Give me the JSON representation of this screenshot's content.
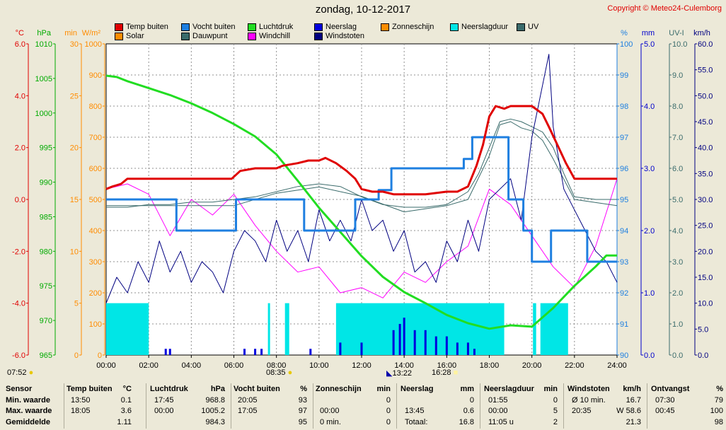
{
  "title": "zondag, 10-12-2017",
  "copyright": "Copyright © Meteo24-Culemborg",
  "legend": [
    {
      "label": "Temp buiten",
      "color": "#e00000"
    },
    {
      "label": "Vocht buiten",
      "color": "#1e7fe0"
    },
    {
      "label": "Luchtdruk",
      "color": "#22dd22"
    },
    {
      "label": "Neerslag",
      "color": "#0000dd"
    },
    {
      "label": "Zonneschijn",
      "color": "#ff8c00"
    },
    {
      "label": "Neerslagduur",
      "color": "#00e6e6"
    },
    {
      "label": "UV",
      "color": "#3a6b6b"
    },
    {
      "label": "Solar",
      "color": "#ff8c00"
    },
    {
      "label": "Dauwpunt",
      "color": "#3a6b6b"
    },
    {
      "label": "Windchill",
      "color": "#ff00ff"
    },
    {
      "label": "Windstoten",
      "color": "#000080"
    }
  ],
  "axes": {
    "temp": {
      "unit": "°C",
      "ticks": [
        "6.0",
        "4.0",
        "2.0",
        "0.0",
        "-2.0",
        "-4.0",
        "-6.0"
      ],
      "color": "#e00000"
    },
    "press": {
      "unit": "hPa",
      "ticks": [
        "1010",
        "1005",
        "1000",
        "995",
        "990",
        "985",
        "980",
        "975",
        "970",
        "965"
      ],
      "color": "#00aa00"
    },
    "min": {
      "unit": "min",
      "ticks": [
        "30",
        "25",
        "20",
        "15",
        "10",
        "5",
        "0"
      ],
      "color": "#ff8c00"
    },
    "solar": {
      "unit": "W/m²",
      "ticks": [
        "1000",
        "900",
        "800",
        "700",
        "600",
        "500",
        "400",
        "300",
        "200",
        "100",
        "0"
      ],
      "color": "#ff8c00"
    },
    "hum": {
      "unit": "%",
      "ticks": [
        "100",
        "99",
        "98",
        "97",
        "96",
        "95",
        "94",
        "93",
        "92",
        "91",
        "90"
      ],
      "color": "#1e7fe0"
    },
    "rain": {
      "unit": "mm",
      "ticks": [
        "5.0",
        "4.0",
        "3.0",
        "2.0",
        "1.0",
        "0.0"
      ],
      "color": "#0000cc"
    },
    "uv": {
      "unit": "UV-I",
      "ticks": [
        "10.0",
        "9.0",
        "8.0",
        "7.0",
        "6.0",
        "5.0",
        "4.0",
        "3.0",
        "2.0",
        "1.0",
        "0.0"
      ],
      "color": "#3a6b6b"
    },
    "wind": {
      "unit": "km/h",
      "ticks": [
        "60.0",
        "55.0",
        "50.0",
        "45.0",
        "40.0",
        "35.0",
        "30.0",
        "25.0",
        "20.0",
        "15.0",
        "10.0",
        "5.0",
        "0.0"
      ],
      "color": "#000080"
    },
    "time": {
      "ticks": [
        "00:00",
        "02:00",
        "04:00",
        "06:00",
        "08:00",
        "10:00",
        "12:00",
        "14:00",
        "16:00",
        "18:00",
        "20:00",
        "22:00",
        "24:00"
      ]
    }
  },
  "sun_events": {
    "sunrise": "08:35",
    "sunset": "16:28",
    "moon_left": "07:52",
    "moon_mid": "13:22"
  },
  "chart_data": {
    "type": "line",
    "x_unit": "hours",
    "xlim": [
      0,
      24
    ],
    "series": [
      {
        "name": "Temp buiten",
        "unit": "°C",
        "color": "#e00000",
        "x": [
          0,
          0.3,
          0.7,
          1,
          2,
          3,
          4,
          5,
          5.9,
          6.3,
          7,
          8,
          8.3,
          9,
          9.5,
          10,
          10.3,
          10.8,
          11.3,
          11.7,
          12,
          12.5,
          13,
          13.5,
          14,
          15,
          16,
          16.5,
          17,
          17.4,
          17.7,
          18,
          18.3,
          18.7,
          19,
          19.5,
          20,
          20.5,
          20.8,
          21.2,
          21.6,
          22,
          23,
          24
        ],
        "y": [
          0.4,
          0.5,
          0.6,
          0.8,
          0.8,
          0.8,
          0.8,
          0.8,
          0.8,
          1.1,
          1.2,
          1.2,
          1.3,
          1.4,
          1.5,
          1.5,
          1.6,
          1.4,
          1.1,
          0.8,
          0.4,
          0.3,
          0.3,
          0.2,
          0.2,
          0.2,
          0.3,
          0.3,
          0.5,
          1.3,
          2.1,
          3.2,
          3.6,
          3.5,
          3.6,
          3.6,
          3.6,
          3.3,
          2.8,
          2.1,
          1.4,
          0.8,
          0.8,
          0.8
        ]
      },
      {
        "name": "Dauwpunt",
        "unit": "°C",
        "color": "#3a6b6b",
        "x": [
          0,
          1,
          2,
          3,
          4,
          5,
          6,
          7,
          8,
          9,
          10,
          11,
          12,
          13,
          14,
          15,
          16,
          17,
          17.5,
          18,
          18.5,
          19,
          19.5,
          20,
          20.5,
          21,
          21.5,
          22,
          23,
          24
        ],
        "y": [
          -0.3,
          -0.3,
          -0.2,
          -0.2,
          -0.1,
          -0.1,
          0,
          0.1,
          0.3,
          0.5,
          0.6,
          0.5,
          0.1,
          -0.2,
          -0.3,
          -0.3,
          -0.2,
          0.3,
          1.0,
          2.0,
          3.0,
          3.1,
          3.0,
          2.8,
          2.6,
          2.0,
          1.0,
          0.1,
          0,
          0
        ]
      },
      {
        "name": "UV",
        "unit": "UV-I",
        "color": "#3a6b6b",
        "x": [
          0,
          6,
          8,
          10,
          12,
          14,
          16,
          17,
          18,
          18.5,
          19,
          19.5,
          20,
          20.5,
          21,
          22,
          24
        ],
        "y": [
          4.8,
          4.8,
          5.2,
          5.4,
          5.1,
          4.6,
          4.8,
          5.0,
          6.4,
          7.4,
          7.5,
          7.3,
          7.2,
          6.9,
          6.3,
          5.0,
          4.8
        ]
      },
      {
        "name": "Luchtdruk",
        "unit": "hPa",
        "color": "#22dd22",
        "x": [
          0,
          0.5,
          1,
          2,
          3,
          4,
          5,
          6,
          7,
          8,
          9,
          10,
          11,
          12,
          13,
          14,
          15,
          16,
          17,
          18,
          19,
          20,
          21,
          22,
          23,
          23.5,
          24
        ],
        "y": [
          1005.4,
          1005.2,
          1004.6,
          1003.6,
          1002.6,
          1001.4,
          1000,
          998.4,
          996.6,
          994,
          990.2,
          986.3,
          982.8,
          979.3,
          976.3,
          974.1,
          972.5,
          970.8,
          969.6,
          968.8,
          969.3,
          969.1,
          971.8,
          975,
          977.8,
          979.4,
          979.4
        ]
      },
      {
        "name": "Vocht buiten",
        "unit": "%",
        "color": "#1e7fe0",
        "x": [
          0,
          3.3,
          3.3,
          6.1,
          6.1,
          9.3,
          9.3,
          11.7,
          11.7,
          12.8,
          12.8,
          13.4,
          13.4,
          16.8,
          16.8,
          17.2,
          17.2,
          18.9,
          18.9,
          19.6,
          19.6,
          20.0,
          20.0,
          20.9,
          20.9,
          22.6,
          22.6,
          23.5,
          23.5,
          24
        ],
        "y": [
          95,
          95,
          94,
          94,
          95,
          95,
          94,
          94,
          95,
          95,
          95.3,
          95.3,
          96,
          96,
          96.3,
          96.3,
          97,
          97,
          95,
          95,
          94,
          94,
          93,
          93,
          94,
          94,
          93,
          93,
          93,
          93
        ]
      },
      {
        "name": "Windstoten",
        "unit": "km/h",
        "color": "#000080",
        "x": [
          0,
          0.5,
          1,
          1.5,
          2,
          2.5,
          3,
          3.5,
          4,
          4.5,
          5,
          5.5,
          6,
          6.5,
          7,
          7.5,
          8,
          8.5,
          9,
          9.5,
          10,
          10.5,
          11,
          11.5,
          12,
          12.5,
          13,
          13.5,
          14,
          14.5,
          15,
          15.5,
          16,
          16.5,
          17,
          17.5,
          18,
          18.5,
          19,
          19.5,
          20,
          20.5,
          20.8,
          21,
          21.5,
          22,
          22.5,
          23,
          23.5,
          24
        ],
        "y": [
          10,
          15,
          12,
          18,
          14,
          22,
          16,
          20,
          14,
          18,
          16,
          12,
          20,
          24,
          22,
          18,
          26,
          20,
          24,
          18,
          28,
          22,
          26,
          22,
          30,
          24,
          26,
          20,
          24,
          16,
          18,
          14,
          22,
          18,
          26,
          20,
          30,
          32,
          34,
          26,
          42,
          52,
          58,
          44,
          32,
          28,
          24,
          20,
          18,
          14
        ]
      },
      {
        "name": "Windchill",
        "unit": "°C",
        "color": "#ff00ff",
        "x": [
          0,
          1,
          2,
          3,
          4,
          5,
          6,
          7,
          8,
          9,
          10,
          11,
          12,
          13,
          14,
          15,
          16,
          17,
          18,
          19,
          20,
          21,
          22,
          23,
          24
        ],
        "y": [
          0.4,
          0.6,
          0.2,
          -1.4,
          0,
          -0.6,
          0.2,
          -1.0,
          -2.0,
          -2.8,
          -2.6,
          -3.6,
          -3.4,
          -3.8,
          -2.8,
          -3.2,
          -2.4,
          -1.8,
          0.4,
          -0.2,
          -1.4,
          -2.6,
          -3.4,
          -1.8,
          0.8
        ]
      },
      {
        "name": "Neerslagduur",
        "unit": "min",
        "color": "#00e6e6",
        "bars": [
          [
            0,
            2,
            5
          ],
          [
            7.6,
            7.7,
            5
          ],
          [
            8.4,
            8.6,
            5
          ],
          [
            10.8,
            18.7,
            5
          ],
          [
            20.05,
            20.2,
            5
          ],
          [
            20.4,
            21.7,
            5
          ]
        ]
      },
      {
        "name": "Neerslag",
        "unit": "mm",
        "color": "#0000dd",
        "x": [
          2.8,
          3,
          6.5,
          7,
          7.3,
          9.6,
          11,
          12,
          13.5,
          13.8,
          14,
          14.5,
          15,
          15.5,
          16,
          16.5,
          17,
          17.3
        ],
        "y": [
          0.1,
          0.1,
          0.1,
          0.1,
          0.1,
          0.1,
          0.2,
          0.2,
          0.4,
          0.5,
          0.6,
          0.4,
          0.4,
          0.3,
          0.3,
          0.2,
          0.2,
          0.1
        ]
      }
    ]
  },
  "stats": {
    "headers": [
      {
        "sensor": "Sensor",
        "name": "Temp buiten",
        "unit": "°C"
      },
      {
        "name": "Luchtdruk",
        "unit": "hPa"
      },
      {
        "name": "Vocht buiten",
        "unit": "%"
      },
      {
        "name": "Zonneschijn",
        "unit": "min"
      },
      {
        "name": "Neerslag",
        "unit": "mm"
      },
      {
        "name": "Neerslagduur",
        "unit": "min"
      },
      {
        "name": "Windstoten",
        "unit": "km/h"
      },
      {
        "name": "Ontvangst",
        "unit": "%"
      }
    ],
    "rows": [
      {
        "label": "Min. waarde",
        "cells": [
          [
            "13:50",
            "0.1"
          ],
          [
            "17:45",
            "968.8"
          ],
          [
            "20:05",
            "93"
          ],
          [
            "",
            "0"
          ],
          [
            "",
            "0"
          ],
          [
            "01:55",
            "0"
          ],
          [
            "Ø 10 min.",
            "16.7"
          ],
          [
            "07:30",
            "79"
          ]
        ]
      },
      {
        "label": "Max. waarde",
        "cells": [
          [
            "18:05",
            "3.6"
          ],
          [
            "00:00",
            "1005.2"
          ],
          [
            "17:05",
            "97"
          ],
          [
            "00:00",
            "0"
          ],
          [
            "13:45",
            "0.6"
          ],
          [
            "00:00",
            "5"
          ],
          [
            "20:35",
            "W 58.6"
          ],
          [
            "00:45",
            "100"
          ]
        ]
      },
      {
        "label": "Gemiddelde",
        "cells": [
          [
            "",
            "1.11"
          ],
          [
            "",
            "984.3"
          ],
          [
            "",
            "95"
          ],
          [
            "0 min.",
            "0"
          ],
          [
            "Totaal:",
            "16.8"
          ],
          [
            "11:05 u",
            "2"
          ],
          [
            "",
            "21.3"
          ],
          [
            "",
            "98"
          ]
        ]
      }
    ]
  }
}
